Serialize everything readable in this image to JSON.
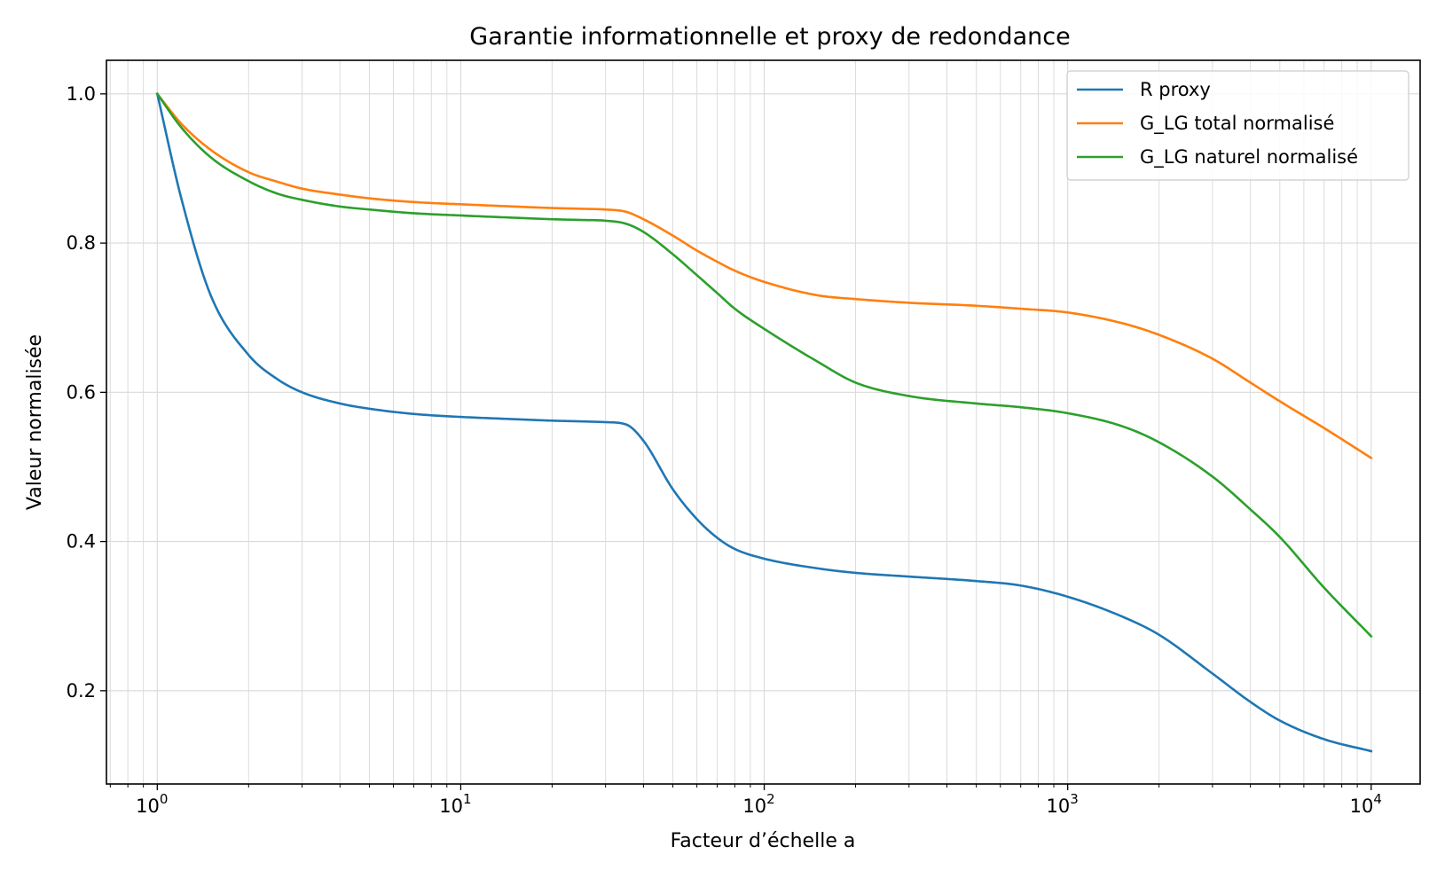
{
  "chart_data": {
    "type": "line",
    "title": "Garantie informationnelle et proxy de redondance",
    "xlabel": "Facteur d’échelle a",
    "ylabel": "Valeur normalisée",
    "xscale": "log",
    "xlim": [
      0.68,
      14500
    ],
    "ylim": [
      0.075,
      1.045
    ],
    "xticks": [
      {
        "value": 1,
        "base": "10",
        "exp": "0"
      },
      {
        "value": 10,
        "base": "10",
        "exp": "1"
      },
      {
        "value": 100,
        "base": "10",
        "exp": "2"
      },
      {
        "value": 1000,
        "base": "10",
        "exp": "3"
      },
      {
        "value": 10000,
        "base": "10",
        "exp": "4"
      }
    ],
    "yticks": [
      {
        "value": 0.2,
        "label": "0.2"
      },
      {
        "value": 0.4,
        "label": "0.4"
      },
      {
        "value": 0.6,
        "label": "0.6"
      },
      {
        "value": 0.8,
        "label": "0.8"
      },
      {
        "value": 1.0,
        "label": "1.0"
      }
    ],
    "grid": true,
    "legend_position": "top-right",
    "series": [
      {
        "name": "R proxy",
        "color": "#1f77b4",
        "x": [
          1,
          1.2,
          1.5,
          2,
          2.5,
          3,
          4,
          5,
          7,
          10,
          15,
          20,
          25,
          30,
          35,
          40,
          50,
          60,
          70,
          80,
          100,
          150,
          200,
          300,
          500,
          700,
          1000,
          1500,
          2000,
          3000,
          4000,
          5000,
          7000,
          10000
        ],
        "y": [
          1.0,
          0.86,
          0.73,
          0.65,
          0.617,
          0.6,
          0.585,
          0.578,
          0.571,
          0.567,
          0.564,
          0.562,
          0.561,
          0.56,
          0.557,
          0.535,
          0.47,
          0.43,
          0.405,
          0.39,
          0.377,
          0.364,
          0.358,
          0.353,
          0.347,
          0.341,
          0.326,
          0.3,
          0.275,
          0.223,
          0.185,
          0.16,
          0.135,
          0.119
        ]
      },
      {
        "name": "G_LG total normalisé",
        "color": "#ff7f0e",
        "x": [
          1,
          1.2,
          1.5,
          2,
          2.5,
          3,
          4,
          5,
          7,
          10,
          15,
          20,
          25,
          30,
          35,
          40,
          50,
          60,
          70,
          80,
          100,
          150,
          200,
          300,
          500,
          700,
          1000,
          1500,
          2000,
          3000,
          4000,
          5000,
          7000,
          10000
        ],
        "y": [
          1.0,
          0.96,
          0.925,
          0.895,
          0.882,
          0.873,
          0.865,
          0.86,
          0.855,
          0.852,
          0.849,
          0.847,
          0.846,
          0.845,
          0.842,
          0.832,
          0.81,
          0.79,
          0.775,
          0.763,
          0.748,
          0.73,
          0.725,
          0.72,
          0.716,
          0.712,
          0.707,
          0.693,
          0.677,
          0.645,
          0.613,
          0.588,
          0.552,
          0.512
        ]
      },
      {
        "name": "G_LG naturel normalisé",
        "color": "#2ca02c",
        "x": [
          1,
          1.2,
          1.5,
          2,
          2.5,
          3,
          4,
          5,
          7,
          10,
          15,
          20,
          25,
          30,
          35,
          40,
          50,
          60,
          70,
          80,
          100,
          150,
          200,
          300,
          500,
          700,
          1000,
          1500,
          2000,
          3000,
          4000,
          5000,
          7000,
          10000
        ],
        "y": [
          1.0,
          0.955,
          0.915,
          0.883,
          0.866,
          0.858,
          0.849,
          0.845,
          0.84,
          0.837,
          0.834,
          0.832,
          0.831,
          0.83,
          0.826,
          0.815,
          0.785,
          0.757,
          0.733,
          0.712,
          0.685,
          0.641,
          0.613,
          0.595,
          0.585,
          0.58,
          0.572,
          0.555,
          0.533,
          0.487,
          0.443,
          0.406,
          0.338,
          0.273
        ]
      }
    ]
  }
}
